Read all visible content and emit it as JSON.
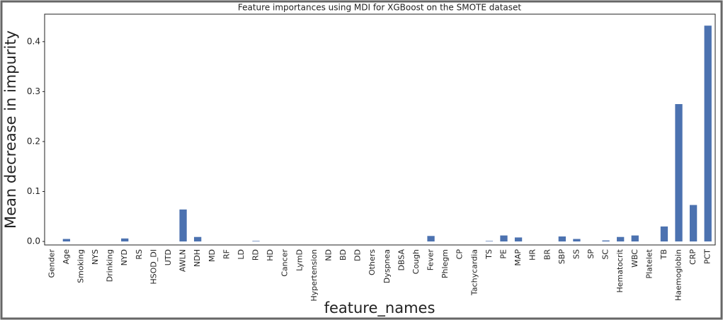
{
  "chart_data": {
    "type": "bar",
    "title": "Feature importances using MDI for XGBoost on the SMOTE dataset",
    "x_label": "feature_names",
    "y_label": "Mean decrease in impurity",
    "categories": [
      "Gender",
      "Age",
      "Smoking",
      "NYS",
      "Drinking",
      "NYD",
      "RS",
      "HSOD_DI",
      "UTD",
      "AWLN",
      "NDH",
      "MD",
      "RF",
      "LD",
      "RD",
      "HD",
      "Cancer",
      "LymD",
      "Hypertension",
      "ND",
      "BD",
      "DD",
      "Others",
      "Dyspnea",
      "DBSA",
      "Cough",
      "Fever",
      "Phlegm",
      "CP",
      "Tachycardia",
      "TS",
      "PE",
      "MAP",
      "HR",
      "BR",
      "SBP",
      "SS",
      "SP",
      "SC",
      "Hematocrit",
      "WBC",
      "Platelet",
      "TB",
      "Haemoglobin",
      "CRP",
      "PCT"
    ],
    "values": [
      0,
      0.005,
      0,
      0,
      0,
      0.006,
      0,
      0,
      0,
      0.064,
      0.009,
      0,
      0,
      0,
      0.001,
      0,
      0,
      0,
      0,
      0,
      0,
      0,
      0,
      0,
      0,
      0,
      0.011,
      0,
      0,
      0,
      0.001,
      0.012,
      0.008,
      0,
      0,
      0.01,
      0.005,
      0,
      0.002,
      0.009,
      0.012,
      0,
      0.03,
      0.275,
      0.073,
      0.432
    ],
    "color": "#4c72b0",
    "ylim": [
      -0.007,
      0.455
    ],
    "yticks": [
      {
        "value": 0,
        "label": "0.0"
      },
      0.1,
      0.2,
      0.3,
      0.4
    ],
    "grid": false
  }
}
